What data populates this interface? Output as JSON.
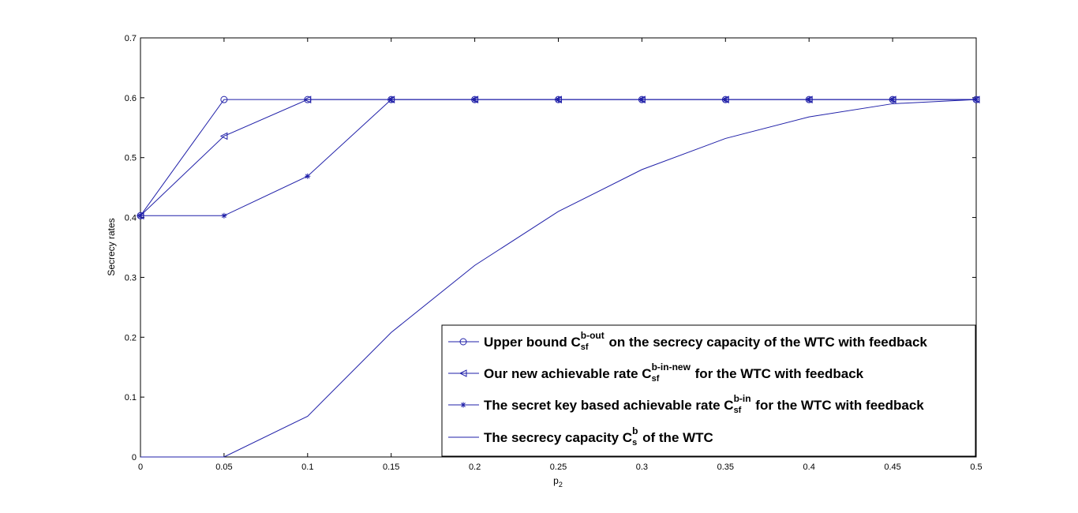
{
  "chart_data": {
    "type": "line",
    "title": "",
    "xlabel": "p",
    "xlabel_sub": "2",
    "ylabel": "Secrecy rates",
    "xlim": [
      0,
      0.5
    ],
    "ylim": [
      0,
      0.7
    ],
    "x_ticks": [
      "0",
      "0.05",
      "0.1",
      "0.15",
      "0.2",
      "0.25",
      "0.3",
      "0.35",
      "0.4",
      "0.45",
      "0.5"
    ],
    "y_ticks": [
      "0",
      "0.1",
      "0.2",
      "0.3",
      "0.4",
      "0.5",
      "0.6",
      "0.7"
    ],
    "grid": false,
    "legend_position": "bottom-right",
    "line_color": "#1f1fa8",
    "series": [
      {
        "marker": "circle",
        "x": [
          0,
          0.05,
          0.1,
          0.15,
          0.2,
          0.25,
          0.3,
          0.35,
          0.4,
          0.45,
          0.5
        ],
        "y": [
          0.403,
          0.597,
          0.597,
          0.597,
          0.597,
          0.597,
          0.597,
          0.597,
          0.597,
          0.597,
          0.597
        ],
        "legend": {
          "pre": "Upper bound C",
          "sub": "sf",
          "sup": "b-out",
          "post": " on the secrecy capacity of the WTC with feedback"
        }
      },
      {
        "marker": "triangle-left",
        "x": [
          0,
          0.05,
          0.1,
          0.15,
          0.2,
          0.25,
          0.3,
          0.35,
          0.4,
          0.45,
          0.5
        ],
        "y": [
          0.403,
          0.536,
          0.597,
          0.597,
          0.597,
          0.597,
          0.597,
          0.597,
          0.597,
          0.597,
          0.597
        ],
        "legend": {
          "pre": "Our new achievable rate C",
          "sub": "sf",
          "sup": "b-in-new",
          "post": " for the WTC with feedback"
        }
      },
      {
        "marker": "star",
        "x": [
          0,
          0.05,
          0.1,
          0.15,
          0.2,
          0.25,
          0.3,
          0.35,
          0.4,
          0.45,
          0.5
        ],
        "y": [
          0.403,
          0.403,
          0.469,
          0.597,
          0.597,
          0.597,
          0.597,
          0.597,
          0.597,
          0.597,
          0.597
        ],
        "legend": {
          "pre": "The secret key based achievable rate C",
          "sub": "sf",
          "sup": "b-in",
          "post": " for the WTC with feedback"
        }
      },
      {
        "marker": "none",
        "x": [
          0,
          0.05,
          0.1,
          0.15,
          0.2,
          0.25,
          0.3,
          0.35,
          0.4,
          0.45,
          0.5
        ],
        "y": [
          0,
          0,
          0.068,
          0.208,
          0.32,
          0.41,
          0.48,
          0.532,
          0.568,
          0.59,
          0.597
        ],
        "legend": {
          "pre": "The secrecy capacity C",
          "sub": "s",
          "sup": "b",
          "post": " of the WTC"
        }
      }
    ]
  }
}
